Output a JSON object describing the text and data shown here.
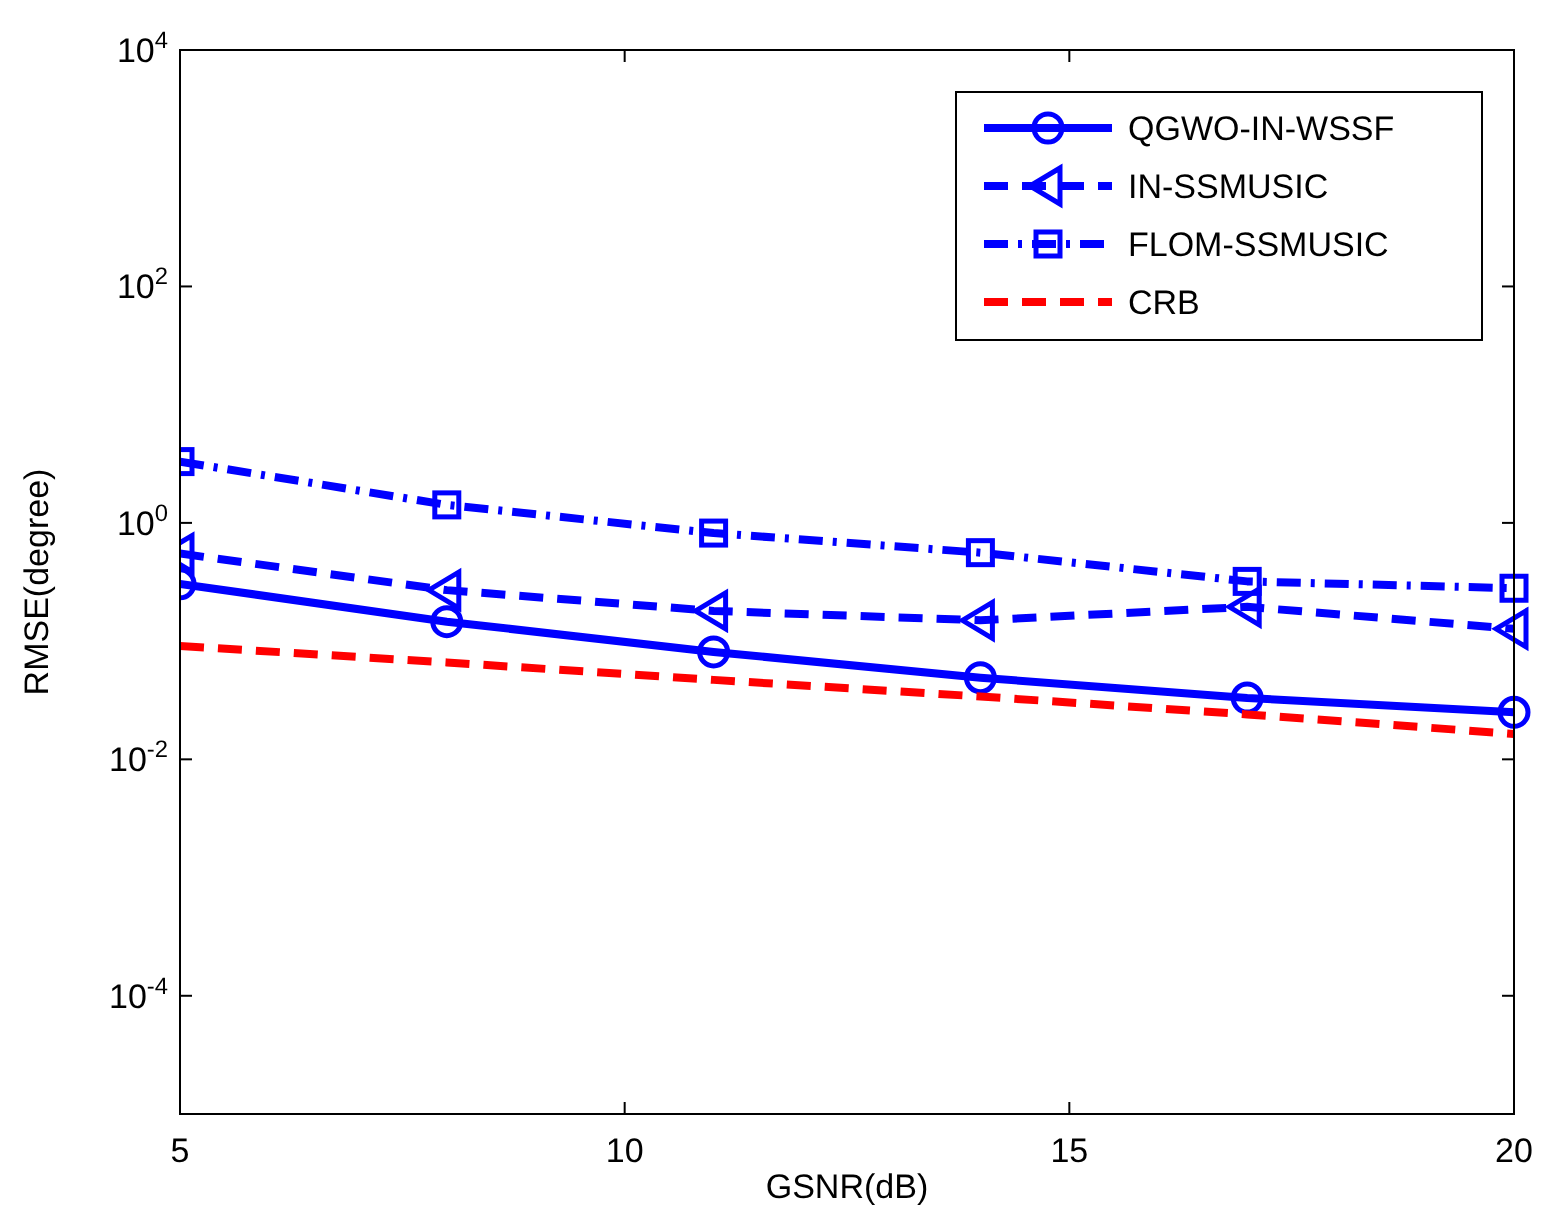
{
  "chart_data": {
    "type": "line",
    "xlabel": "GSNR(dB)",
    "ylabel": "RMSE(degree)",
    "log": "y",
    "legend": "top right",
    "grid": false,
    "x": [
      5,
      8,
      11,
      14,
      17,
      20
    ],
    "xlim": [
      5,
      20
    ],
    "xticks": [
      5,
      10,
      15,
      20
    ],
    "ylim": [
      1e-05,
      10000
    ],
    "yticks": [
      {
        "value": 0.0001,
        "label": "10$^{-4}$"
      },
      {
        "value": 0.01,
        "label": "10$^{-2}$"
      },
      {
        "value": 1,
        "label": "10$^{0}$"
      },
      {
        "value": 100,
        "label": "10$^{2}$"
      },
      {
        "value": 10000,
        "label": "10$^{4}$"
      }
    ],
    "series": [
      {
        "name": "QGWO-IN-WSSF",
        "color": "#0000ff",
        "marker": "circle",
        "line_style": "solid",
        "values": [
          0.305,
          0.146,
          0.081,
          0.049,
          0.033,
          0.025
        ]
      },
      {
        "name": "IN-SSMUSIC",
        "color": "#0000ff",
        "marker": "triangle",
        "line_style": "dashed",
        "values": [
          0.55,
          0.27,
          0.18,
          0.15,
          0.195,
          0.127
        ]
      },
      {
        "name": "FLOM-SSMUSIC",
        "color": "#0000ff",
        "marker": "square",
        "line_style": "dashdot",
        "values": [
          3.3,
          1.42,
          0.82,
          0.56,
          0.32,
          0.28
        ]
      },
      {
        "name": "CRB",
        "color": "#ff0000",
        "marker": "none",
        "line_style": "dashed",
        "values": [
          0.091,
          0.066,
          0.047,
          0.034,
          0.024,
          0.0164
        ]
      }
    ]
  }
}
